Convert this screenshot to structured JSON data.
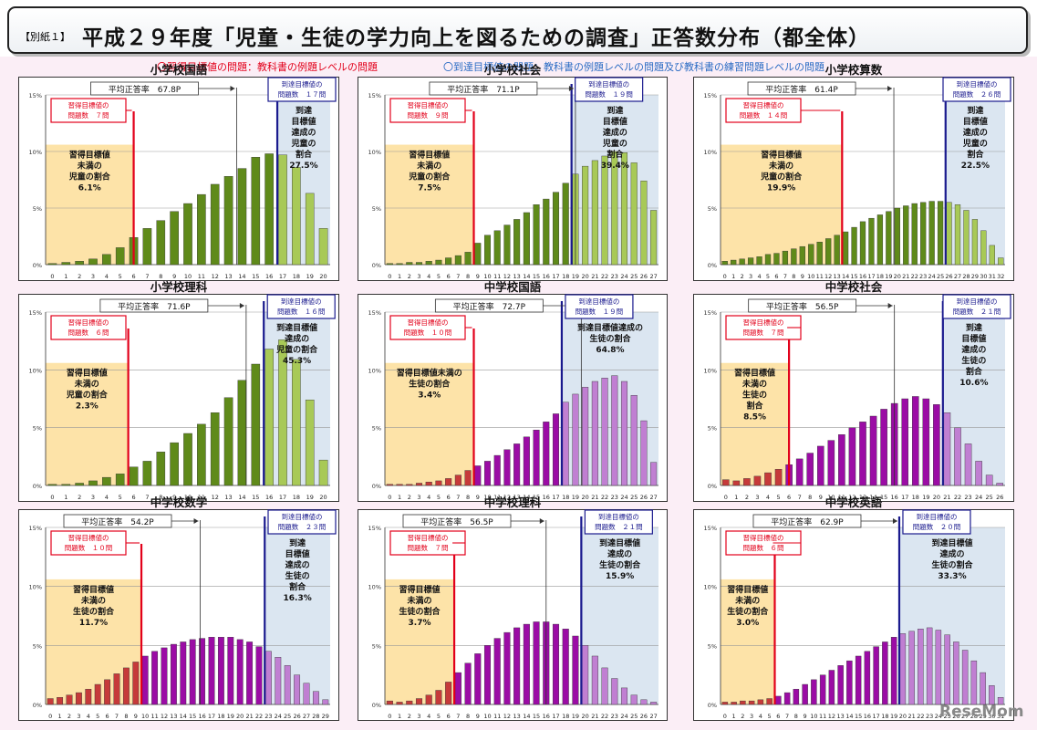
{
  "header": {
    "tag": "【別紙１】",
    "title": "平成２９年度「児童・生徒の学力向上を図るための調査」正答数分布（都全体）"
  },
  "legend": {
    "red": "〇習得目標値の問題：教科書の例題レベルの問題",
    "blue": "〇到達目標値の問題：教科書の例題レベルの問題及び教科書の練習問題レベルの問題"
  },
  "watermark": "ReseMom",
  "colors": {
    "elem_bar": "#5f8a1a",
    "elem_bar_light": "#a8c957",
    "junior_bar": "#9b0ca5",
    "junior_bar_light": "#c07fd2",
    "low_bar": "#c63a3a",
    "red_line": "#e2001a",
    "blue_line": "#1a1a8e",
    "low_area": "#fde3a8",
    "high_area": "#dbe6f1"
  },
  "chart_data": [
    {
      "type": "bar",
      "title": "小学校国語",
      "avg_label": "平均正答率　67.8P",
      "low_label": [
        "習得目標値の",
        "問題数　７問"
      ],
      "high_label": [
        "到達目標値の",
        "問題数　１７問"
      ],
      "low_text": [
        "習得目標値",
        "未満の",
        "児童の割合",
        "6.1%"
      ],
      "high_text": [
        "到達",
        "目標値",
        "達成の",
        "児童の",
        "割合",
        "27.5%"
      ],
      "categories": [
        "0",
        "1",
        "2",
        "3",
        "4",
        "5",
        "6",
        "7",
        "8",
        "9",
        "10",
        "11",
        "12",
        "13",
        "14",
        "15",
        "16",
        "17",
        "18",
        "19",
        "20"
      ],
      "values": [
        0.1,
        0.2,
        0.3,
        0.5,
        0.9,
        1.5,
        2.4,
        3.2,
        3.9,
        4.7,
        5.4,
        6.2,
        7.1,
        7.8,
        8.5,
        9.5,
        9.8,
        9.7,
        8.6,
        6.3,
        3.2
      ],
      "yticks": [
        "0%",
        "5%",
        "10%",
        "15%"
      ],
      "ylim": [
        0,
        15
      ],
      "low_cut": 6,
      "high_cut": 16.6,
      "avg_pos": 13.6,
      "scheme": "elem"
    },
    {
      "type": "bar",
      "title": "小学校社会",
      "avg_label": "平均正答率　71.1P",
      "low_label": [
        "習得目標値の",
        "問題数　９問"
      ],
      "high_label": [
        "到達目標値の",
        "問題数　１９問"
      ],
      "low_text": [
        "習得目標値",
        "未満の",
        "児童の割合",
        "7.5%"
      ],
      "high_text": [
        "到達",
        "目標値",
        "達成の",
        "児童の",
        "割合",
        "39.4%"
      ],
      "categories": [
        "0",
        "1",
        "2",
        "3",
        "4",
        "5",
        "6",
        "7",
        "8",
        "9",
        "10",
        "11",
        "12",
        "13",
        "14",
        "15",
        "16",
        "17",
        "18",
        "19",
        "20",
        "21",
        "22",
        "23",
        "24",
        "25",
        "26",
        "27"
      ],
      "values": [
        0.1,
        0.1,
        0.2,
        0.2,
        0.3,
        0.4,
        0.6,
        0.8,
        1.1,
        1.9,
        2.6,
        3.0,
        3.5,
        4.0,
        4.6,
        5.3,
        5.8,
        6.4,
        7.2,
        8.0,
        8.7,
        9.2,
        9.6,
        10.0,
        9.9,
        9.0,
        7.4,
        4.8
      ],
      "yticks": [
        "0%",
        "5%",
        "10%",
        "15%"
      ],
      "ylim": [
        0,
        15
      ],
      "low_cut": 8.6,
      "high_cut": 18.6,
      "avg_pos": 19.0,
      "scheme": "elem"
    },
    {
      "type": "bar",
      "title": "小学校算数",
      "avg_label": "平均正答率　61.4P",
      "low_label": [
        "習得目標値の",
        "問題数　１４問"
      ],
      "high_label": [
        "到達目標値の",
        "問題数　２６問"
      ],
      "low_text": [
        "習得目標値",
        "未満の",
        "児童の割合",
        "19.9%"
      ],
      "high_text": [
        "到達",
        "目標値",
        "達成の",
        "児童の",
        "割合",
        "22.5%"
      ],
      "categories": [
        "0",
        "1",
        "2",
        "3",
        "4",
        "5",
        "6",
        "7",
        "8",
        "9",
        "10",
        "11",
        "12",
        "13",
        "14",
        "15",
        "16",
        "17",
        "18",
        "19",
        "20",
        "21",
        "22",
        "23",
        "24",
        "25",
        "26",
        "27",
        "28",
        "29",
        "30",
        "31",
        "32"
      ],
      "values": [
        0.3,
        0.4,
        0.5,
        0.6,
        0.7,
        0.9,
        1.0,
        1.2,
        1.4,
        1.6,
        1.8,
        2.0,
        2.3,
        2.6,
        2.9,
        3.3,
        3.8,
        4.1,
        4.4,
        4.7,
        5.0,
        5.2,
        5.4,
        5.5,
        5.6,
        5.6,
        5.5,
        5.3,
        4.8,
        4.0,
        3.0,
        1.7,
        0.6
      ],
      "yticks": [
        "0%",
        "5%",
        "10%",
        "15%"
      ],
      "ylim": [
        0,
        15
      ],
      "low_cut": 13.6,
      "high_cut": 25.6,
      "avg_pos": 19.6,
      "scheme": "elem"
    },
    {
      "type": "bar",
      "title": "小学校理科",
      "avg_label": "平均正答率　71.6P",
      "low_label": [
        "習得目標値の",
        "問題数　６問"
      ],
      "high_label": [
        "到達目標値の",
        "問題数　１６問"
      ],
      "low_text": [
        "習得目標値",
        "未満の",
        "児童の割合",
        "2.3%"
      ],
      "high_text": [
        "到達目標値",
        "達成の",
        "児童の割合",
        "45.3%"
      ],
      "categories": [
        "0",
        "1",
        "2",
        "3",
        "4",
        "5",
        "6",
        "7",
        "8",
        "9",
        "10",
        "11",
        "12",
        "13",
        "14",
        "15",
        "16",
        "17",
        "18",
        "19",
        "20"
      ],
      "values": [
        0.1,
        0.1,
        0.2,
        0.4,
        0.7,
        1.0,
        1.6,
        2.1,
        2.9,
        3.7,
        4.5,
        5.3,
        6.3,
        7.6,
        9.1,
        10.5,
        11.8,
        12.6,
        10.9,
        7.4,
        2.2
      ],
      "yticks": [
        "0%",
        "5%",
        "10%",
        "15%"
      ],
      "ylim": [
        0,
        15
      ],
      "low_cut": 5.6,
      "high_cut": 15.6,
      "avg_pos": 14.3,
      "scheme": "elem"
    },
    {
      "type": "bar",
      "title": "中学校国語",
      "avg_label": "平均正答率　72.7P",
      "low_label": [
        "習得目標値の",
        "問題数　１０問"
      ],
      "high_label": [
        "到達目標値の",
        "問題数　１９問"
      ],
      "low_text": [
        "習得目標値未満の",
        "生徒の割合",
        "3.4%"
      ],
      "high_text": [
        "到達目標値達成の",
        "生徒の割合",
        "64.8%"
      ],
      "categories": [
        "0",
        "1",
        "2",
        "3",
        "4",
        "5",
        "6",
        "7",
        "8",
        "9",
        "10",
        "11",
        "12",
        "13",
        "14",
        "15",
        "16",
        "17",
        "18",
        "19",
        "20",
        "21",
        "22",
        "23",
        "24",
        "25",
        "26",
        "27"
      ],
      "values": [
        0.1,
        0.1,
        0.1,
        0.2,
        0.3,
        0.4,
        0.6,
        0.9,
        1.3,
        1.7,
        2.1,
        2.6,
        3.1,
        3.6,
        4.2,
        4.8,
        5.5,
        6.2,
        7.2,
        7.9,
        8.5,
        9.0,
        9.3,
        9.5,
        9.0,
        7.8,
        5.6,
        2.0
      ],
      "yticks": [
        "0%",
        "5%",
        "10%",
        "15%"
      ],
      "ylim": [
        0,
        15
      ],
      "low_cut": 8.6,
      "high_cut": 17.6,
      "avg_pos": 19.6,
      "scheme": "junior"
    },
    {
      "type": "bar",
      "title": "中学校社会",
      "avg_label": "平均正答率　56.5P",
      "low_label": [
        "習得目標値の",
        "問題数　７問"
      ],
      "high_label": [
        "到達目標値の",
        "問題数　２１問"
      ],
      "low_text": [
        "習得目標値",
        "未満の",
        "生徒の",
        "割合",
        "8.5%"
      ],
      "high_text": [
        "到達",
        "目標値",
        "達成の",
        "生徒の",
        "割合",
        "10.6%"
      ],
      "categories": [
        "0",
        "1",
        "2",
        "3",
        "4",
        "5",
        "6",
        "7",
        "8",
        "9",
        "10",
        "11",
        "12",
        "13",
        "14",
        "15",
        "16",
        "17",
        "18",
        "19",
        "20",
        "21",
        "22",
        "23",
        "24",
        "25",
        "26"
      ],
      "values": [
        0.5,
        0.4,
        0.6,
        0.8,
        1.1,
        1.4,
        1.8,
        2.3,
        2.8,
        3.4,
        3.9,
        4.4,
        5.0,
        5.5,
        6.0,
        6.6,
        7.1,
        7.5,
        7.7,
        7.5,
        7.0,
        6.3,
        5.0,
        3.6,
        2.1,
        0.9,
        0.2
      ],
      "yticks": [
        "0%",
        "5%",
        "10%",
        "15%"
      ],
      "ylim": [
        0,
        15
      ],
      "low_cut": 6.0,
      "high_cut": 20.6,
      "avg_pos": 16.0,
      "scheme": "junior"
    },
    {
      "type": "bar",
      "title": "中学校数学",
      "avg_label": "平均正答率　54.2P",
      "low_label": [
        "習得目標値の",
        "問題数　１０問"
      ],
      "high_label": [
        "到達目標値の",
        "問題数　２３問"
      ],
      "low_text": [
        "習得目標値",
        "未満の",
        "生徒の割合",
        "11.7%"
      ],
      "high_text": [
        "到達",
        "目標値",
        "達成の",
        "生徒の",
        "割合",
        "16.3%"
      ],
      "categories": [
        "0",
        "1",
        "2",
        "3",
        "4",
        "5",
        "6",
        "7",
        "8",
        "9",
        "10",
        "11",
        "12",
        "13",
        "14",
        "15",
        "16",
        "17",
        "18",
        "19",
        "20",
        "21",
        "22",
        "23",
        "24",
        "25",
        "26",
        "27",
        "28",
        "29"
      ],
      "values": [
        0.5,
        0.6,
        0.8,
        1.0,
        1.3,
        1.7,
        2.1,
        2.6,
        3.1,
        3.6,
        4.1,
        4.5,
        4.8,
        5.1,
        5.3,
        5.5,
        5.6,
        5.7,
        5.7,
        5.7,
        5.5,
        5.3,
        4.9,
        4.5,
        4.0,
        3.3,
        2.5,
        1.8,
        1.1,
        0.4
      ],
      "yticks": [
        "0%",
        "5%",
        "10%",
        "15%"
      ],
      "ylim": [
        0,
        15
      ],
      "low_cut": 9.6,
      "high_cut": 22.6,
      "avg_pos": 15.8,
      "scheme": "junior"
    },
    {
      "type": "bar",
      "title": "中学校理科",
      "avg_label": "平均正答率　56.5P",
      "low_label": [
        "習得目標値の",
        "問題数　７問"
      ],
      "high_label": [
        "到達目標値の",
        "問題数　２１問"
      ],
      "low_text": [
        "習得目標値",
        "未満の",
        "生徒の割合",
        "3.7%"
      ],
      "high_text": [
        "到達目標値",
        "達成の",
        "生徒の割合",
        "15.9%"
      ],
      "categories": [
        "0",
        "1",
        "2",
        "3",
        "4",
        "5",
        "6",
        "7",
        "8",
        "9",
        "10",
        "11",
        "12",
        "13",
        "14",
        "15",
        "16",
        "17",
        "18",
        "19",
        "20",
        "21",
        "22",
        "23",
        "24",
        "25",
        "26",
        "27"
      ],
      "values": [
        0.3,
        0.2,
        0.3,
        0.5,
        0.8,
        1.2,
        1.9,
        2.7,
        3.5,
        4.3,
        5.0,
        5.6,
        6.1,
        6.5,
        6.8,
        7.0,
        7.0,
        6.8,
        6.4,
        5.8,
        5.0,
        4.1,
        3.1,
        2.2,
        1.4,
        0.8,
        0.4,
        0.2
      ],
      "yticks": [
        "0%",
        "5%",
        "10%",
        "15%"
      ],
      "ylim": [
        0,
        15
      ],
      "low_cut": 6.6,
      "high_cut": 19.6,
      "avg_pos": 16.0,
      "scheme": "junior"
    },
    {
      "type": "bar",
      "title": "中学校英語",
      "avg_label": "平均正答率　62.9P",
      "low_label": [
        "習得目標値の",
        "問題数　６問"
      ],
      "high_label": [
        "到達目標値の",
        "問題数　２０問"
      ],
      "low_text": [
        "習得目標値",
        "未満の",
        "生徒の割合",
        "3.0%"
      ],
      "high_text": [
        "到達目標値",
        "達成の",
        "生徒の割合",
        "33.3%"
      ],
      "categories": [
        "0",
        "1",
        "2",
        "3",
        "4",
        "5",
        "6",
        "7",
        "8",
        "9",
        "10",
        "11",
        "12",
        "13",
        "14",
        "15",
        "16",
        "17",
        "18",
        "19",
        "20",
        "21",
        "22",
        "23",
        "24",
        "25",
        "26",
        "27",
        "28",
        "29",
        "30",
        "31"
      ],
      "values": [
        0.2,
        0.2,
        0.3,
        0.3,
        0.4,
        0.5,
        0.7,
        1.0,
        1.3,
        1.7,
        2.1,
        2.5,
        2.9,
        3.3,
        3.7,
        4.1,
        4.5,
        4.9,
        5.3,
        5.7,
        6.0,
        6.2,
        6.4,
        6.5,
        6.3,
        5.9,
        5.3,
        4.6,
        3.7,
        2.7,
        1.6,
        0.6
      ],
      "yticks": [
        "0%",
        "5%",
        "10%",
        "15%"
      ],
      "ylim": [
        0,
        15
      ],
      "low_cut": 5.6,
      "high_cut": 19.6,
      "avg_pos": 19.6,
      "scheme": "junior"
    }
  ]
}
